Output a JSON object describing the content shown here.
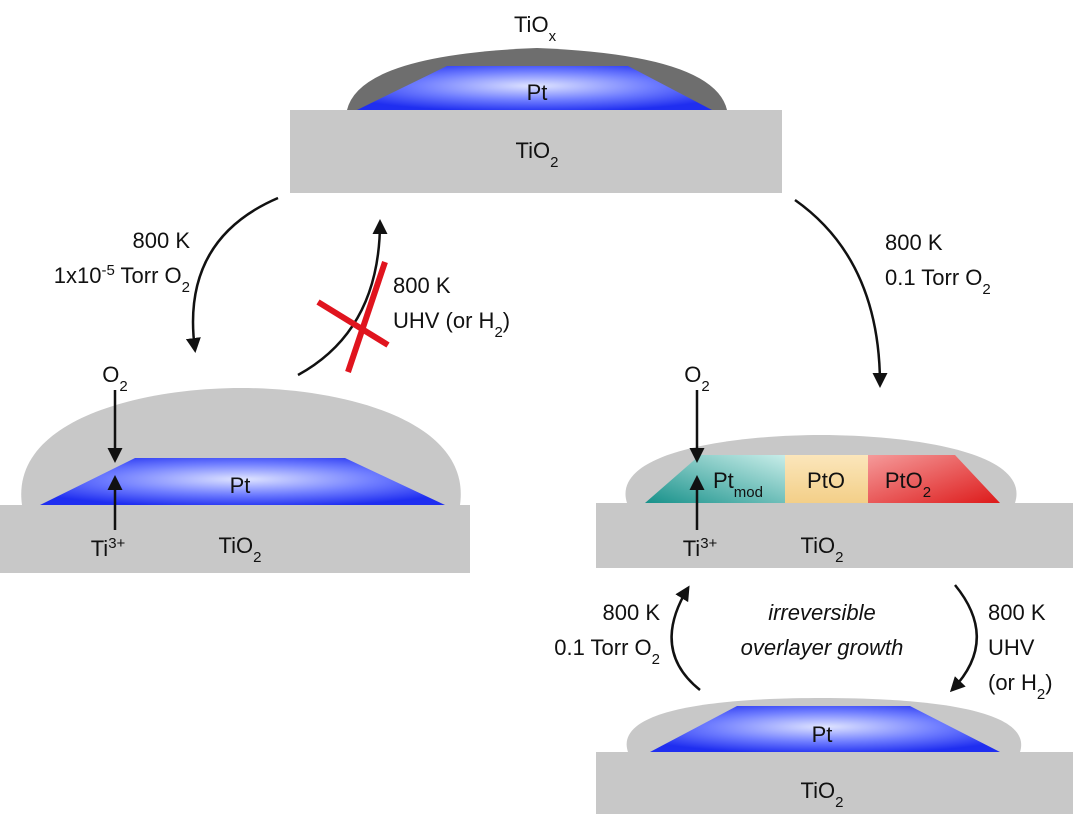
{
  "top": {
    "overlayer": [
      {
        "text": "TiO"
      },
      {
        "text": "x",
        "shift": "sub"
      }
    ],
    "particle": [
      {
        "text": "Pt"
      }
    ],
    "support": [
      {
        "text": "TiO"
      },
      {
        "text": "2",
        "shift": "sub"
      }
    ]
  },
  "left": {
    "gas": [
      {
        "text": "O"
      },
      {
        "text": "2",
        "shift": "sub"
      }
    ],
    "particle": [
      {
        "text": "Pt"
      }
    ],
    "defect": [
      {
        "text": "Ti"
      },
      {
        "text": "3+",
        "shift": "super"
      }
    ],
    "support": [
      {
        "text": "TiO"
      },
      {
        "text": "2",
        "shift": "sub"
      }
    ]
  },
  "right": {
    "gas": [
      {
        "text": "O"
      },
      {
        "text": "2",
        "shift": "sub"
      }
    ],
    "regions": [
      [
        {
          "text": "Pt"
        },
        {
          "text": "mod",
          "shift": "sub"
        }
      ],
      [
        {
          "text": "PtO"
        }
      ],
      [
        {
          "text": "PtO"
        },
        {
          "text": "2",
          "shift": "sub"
        }
      ]
    ],
    "defect": [
      {
        "text": "Ti"
      },
      {
        "text": "3+",
        "shift": "super"
      }
    ],
    "support": [
      {
        "text": "TiO"
      },
      {
        "text": "2",
        "shift": "sub"
      }
    ]
  },
  "bottom": {
    "particle": [
      {
        "text": "Pt"
      }
    ],
    "support": [
      {
        "text": "TiO"
      },
      {
        "text": "2",
        "shift": "sub"
      }
    ]
  },
  "arrows": {
    "top_to_left": [
      [
        {
          "text": "800 K"
        }
      ],
      [
        {
          "text": "1x10"
        },
        {
          "text": "-5",
          "shift": "super"
        },
        {
          "text": " Torr O"
        },
        {
          "text": "2",
          "shift": "sub"
        }
      ]
    ],
    "left_to_top": [
      [
        {
          "text": "800 K"
        }
      ],
      [
        {
          "text": "UHV (or H"
        },
        {
          "text": "2",
          "shift": "sub"
        },
        {
          "text": ")"
        }
      ]
    ],
    "top_to_right": [
      [
        {
          "text": "800 K"
        }
      ],
      [
        {
          "text": "0.1 Torr O"
        },
        {
          "text": "2",
          "shift": "sub"
        }
      ]
    ],
    "bottom_to_right": [
      [
        {
          "text": "800 K"
        }
      ],
      [
        {
          "text": "0.1 Torr O"
        },
        {
          "text": "2",
          "shift": "sub"
        }
      ]
    ],
    "right_to_bottom": [
      [
        {
          "text": "800 K"
        }
      ],
      [
        {
          "text": "UHV"
        }
      ],
      [
        {
          "text": "(or H"
        },
        {
          "text": "2",
          "shift": "sub"
        },
        {
          "text": ")"
        }
      ]
    ]
  },
  "note": [
    [
      {
        "text": "irreversible"
      }
    ],
    [
      {
        "text": "overlayer growth"
      }
    ]
  ]
}
